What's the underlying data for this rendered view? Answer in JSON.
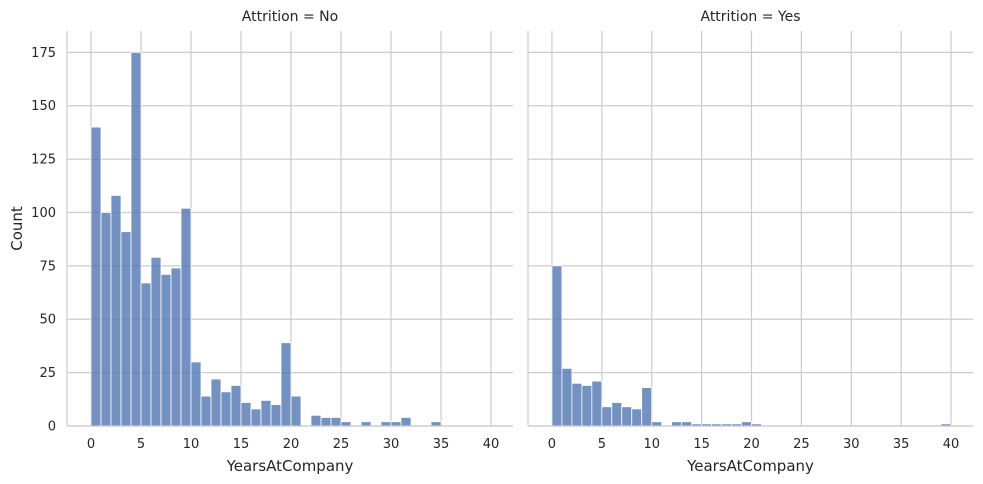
{
  "chart_data": {
    "type": "bar",
    "x_label": "YearsAtCompany",
    "y_label": "Count",
    "xlim": [
      -2.4,
      42.2
    ],
    "ylim": [
      0,
      185
    ],
    "x_ticks": [
      0,
      5,
      10,
      15,
      20,
      25,
      30,
      35,
      40
    ],
    "y_ticks": [
      0,
      25,
      50,
      75,
      100,
      125,
      150,
      175
    ],
    "grid": true,
    "bar_color": "#4c72b0",
    "bin_edges": [
      0,
      1,
      2,
      3,
      4,
      5,
      6,
      7,
      8,
      9,
      10,
      11,
      12,
      13,
      14,
      15,
      16,
      17,
      18,
      19,
      20,
      21,
      22,
      23,
      24,
      25,
      26,
      27,
      28,
      29,
      30,
      31,
      32,
      33,
      34,
      35,
      36,
      37,
      38,
      39,
      40
    ],
    "panels": [
      {
        "title": "Attrition = No",
        "counts": [
          140,
          100,
          108,
          91,
          175,
          67,
          79,
          71,
          74,
          102,
          30,
          14,
          22,
          16,
          19,
          11,
          8,
          12,
          10,
          39,
          14,
          0,
          5,
          4,
          4,
          2,
          0,
          2,
          0,
          2,
          2,
          4,
          0,
          0,
          2,
          0,
          0,
          0,
          0,
          0
        ]
      },
      {
        "title": "Attrition = Yes",
        "counts": [
          75,
          27,
          20,
          19,
          21,
          9,
          11,
          9,
          8,
          18,
          2,
          0,
          2,
          2,
          1,
          1,
          1,
          1,
          1,
          2,
          1,
          0,
          0,
          0,
          0,
          0,
          0,
          0,
          0,
          0,
          0,
          0,
          0,
          0,
          0,
          0,
          0,
          0,
          0,
          1
        ]
      }
    ]
  }
}
